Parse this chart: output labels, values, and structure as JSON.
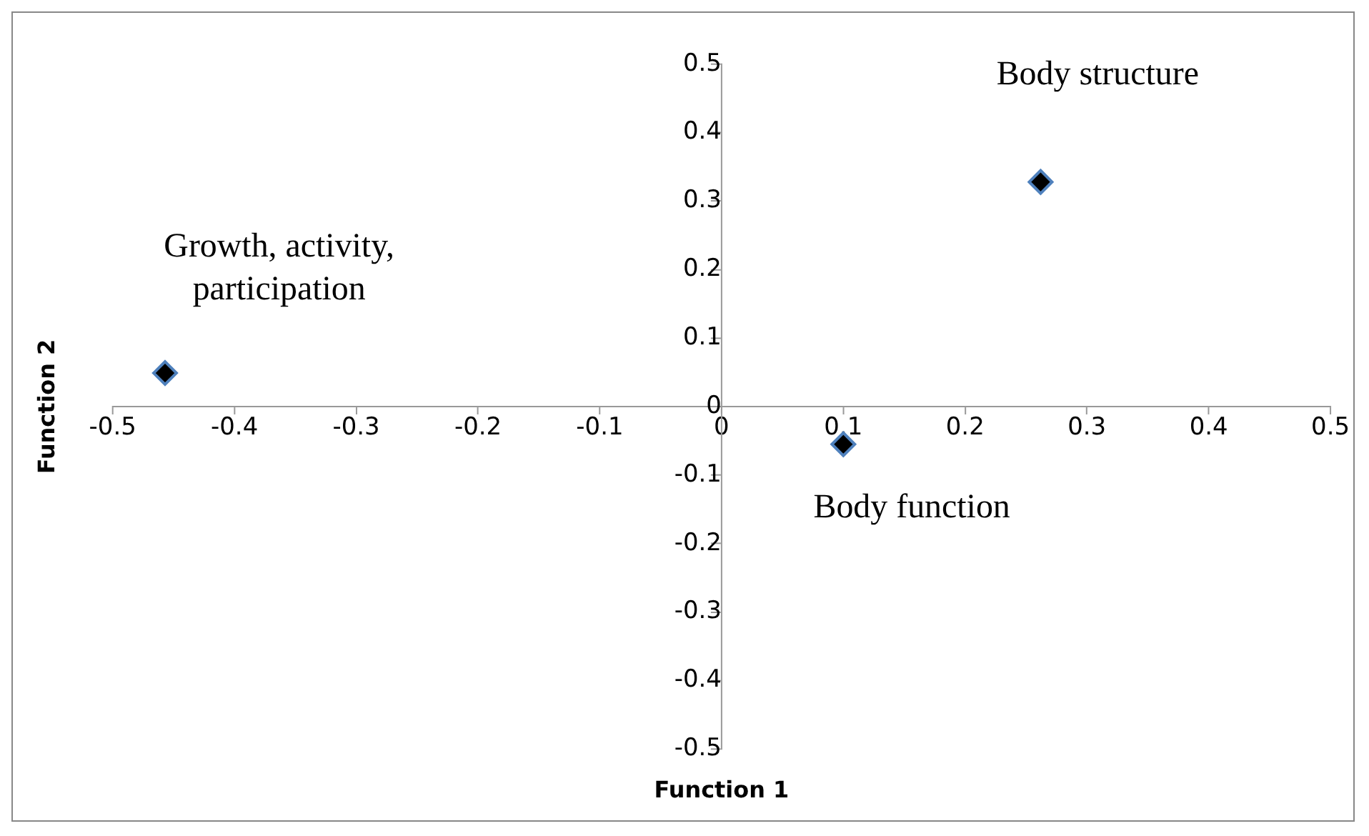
{
  "chart_data": {
    "type": "scatter",
    "xlabel": "Function 1",
    "ylabel": "Function 2",
    "x": [
      -0.457,
      0.1,
      0.262
    ],
    "values": [
      0.049,
      -0.055,
      0.328
    ],
    "color": "#000000",
    "marker": "diamond",
    "grid": false,
    "xlim": [
      -0.5,
      0.5
    ],
    "xticks": [
      -0.5,
      -0.4,
      -0.3,
      -0.2,
      -0.1,
      0,
      0.1,
      0.2,
      0.3,
      0.4,
      0.5
    ],
    "ylim": [
      -0.5,
      0.5
    ],
    "yticks": [
      -0.5,
      -0.4,
      -0.3,
      -0.2,
      -0.1,
      0,
      0.1,
      0.2,
      0.3,
      0.4,
      0.5
    ],
    "annotations": [
      {
        "text": "Growth, activity, participation",
        "x": -0.457,
        "y": 0.049
      },
      {
        "text": "Body function",
        "x": 0.1,
        "y": -0.055
      },
      {
        "text": "Body structure",
        "x": 0.262,
        "y": 0.328
      }
    ]
  }
}
